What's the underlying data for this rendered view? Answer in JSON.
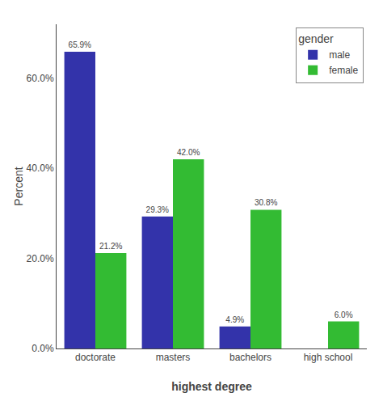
{
  "chart_data": {
    "type": "bar",
    "xlabel": "highest degree",
    "ylabel": "Percent",
    "categories": [
      "doctorate",
      "masters",
      "bachelors",
      "high school"
    ],
    "series": [
      {
        "name": "male",
        "color": "#3333aa",
        "values": [
          65.9,
          29.3,
          4.9,
          0.0
        ],
        "value_labels": [
          "65.9%",
          "29.3%",
          "4.9%",
          null
        ]
      },
      {
        "name": "female",
        "color": "#33bb33",
        "values": [
          21.2,
          42.0,
          30.8,
          6.0
        ],
        "value_labels": [
          "21.2%",
          "42.0%",
          "30.8%",
          "6.0%"
        ]
      }
    ],
    "legend_title": "gender",
    "legend": "upper right",
    "ylim": [
      0,
      72
    ],
    "yticks": [
      {
        "value": 0,
        "label": "0.0%"
      },
      {
        "value": 20,
        "label": "20.0%"
      },
      {
        "value": 40,
        "label": "40.0%"
      },
      {
        "value": 60,
        "label": "60.0%"
      }
    ],
    "grid": false,
    "data_labels": true
  }
}
